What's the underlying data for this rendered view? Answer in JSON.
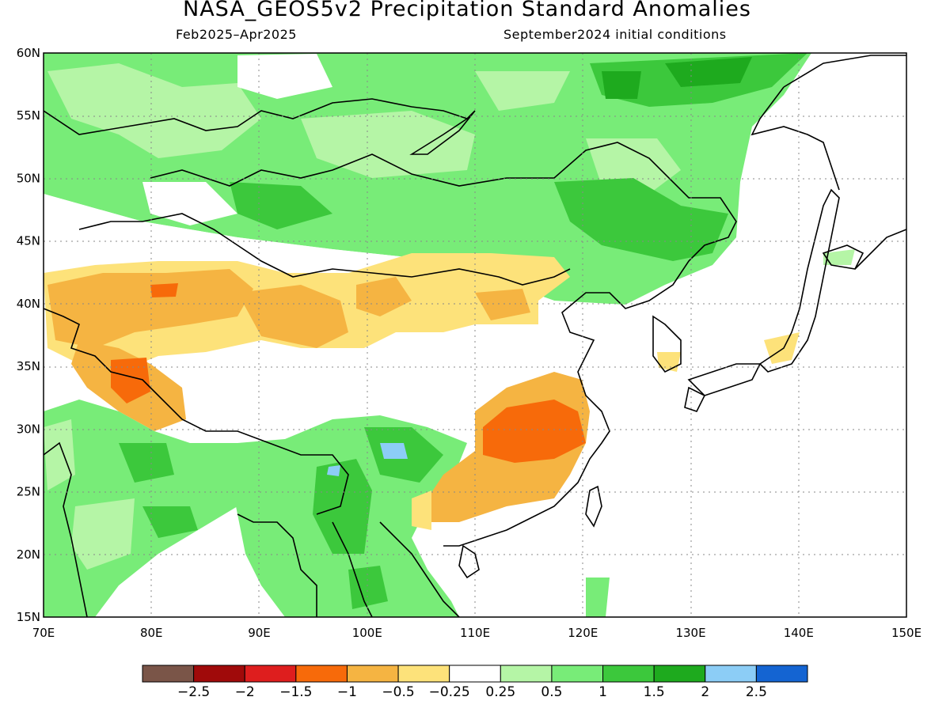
{
  "title": "NASA_GEOS5v2 Precipitation Standard Anomalies",
  "period": "Feb2025–Apr2025",
  "init": "September2024 initial conditions",
  "lat_labels": [
    "60N",
    "55N",
    "50N",
    "45N",
    "40N",
    "35N",
    "30N",
    "25N",
    "20N",
    "15N"
  ],
  "lon_labels": [
    "70E",
    "80E",
    "90E",
    "100E",
    "110E",
    "120E",
    "130E",
    "140E",
    "150E"
  ],
  "colorbar": {
    "colors": [
      "#7a5548",
      "#a00a0a",
      "#de1e1e",
      "#f76a0a",
      "#f5b442",
      "#fde27a",
      "#ffffff",
      "#b5f5a6",
      "#78ec78",
      "#3cc83c",
      "#1eaa1e",
      "#8ccdf6",
      "#1464d2"
    ],
    "labels": [
      "−2.5",
      "−2",
      "−1.5",
      "−1",
      "−0.5",
      "−0.25",
      "0.25",
      "0.5",
      "1",
      "1.5",
      "2",
      "2.5"
    ]
  },
  "map_extent": {
    "lon": [
      70,
      150
    ],
    "lat": [
      15,
      60
    ]
  }
}
